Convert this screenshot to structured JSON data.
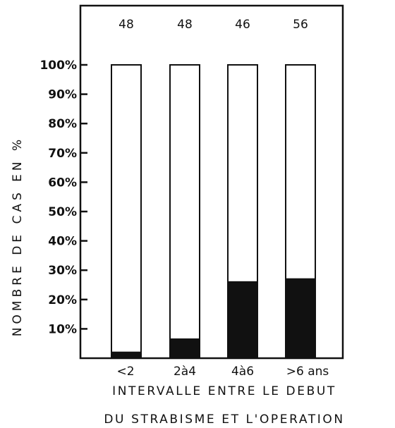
{
  "chart_data": {
    "type": "bar",
    "stacked": true,
    "categories": [
      "<2",
      "2à4",
      "4à6",
      ">6 ans"
    ],
    "counts": [
      "48",
      "48",
      "46",
      "56"
    ],
    "series": [
      {
        "values": [
          2,
          6.5,
          26,
          27
        ],
        "color": "#111111"
      },
      {
        "values": [
          98,
          93.5,
          74,
          73
        ],
        "color": "#ffffff"
      }
    ],
    "ylabel": "NOMBRE DE CAS EN %",
    "xlabel_lines": [
      "INTERVALLE ENTRE LE DEBUT",
      "DU STRABISME ET L'OPERATION"
    ],
    "ylim": [
      0,
      100
    ],
    "yticks": [
      "100%",
      "90%",
      "80%",
      "70%",
      "60%",
      "50%",
      "40%",
      "30%",
      "20%",
      "10%"
    ],
    "ytick_values": [
      100,
      90,
      80,
      70,
      60,
      50,
      40,
      30,
      20,
      10
    ],
    "grid": false,
    "legend": "none"
  }
}
